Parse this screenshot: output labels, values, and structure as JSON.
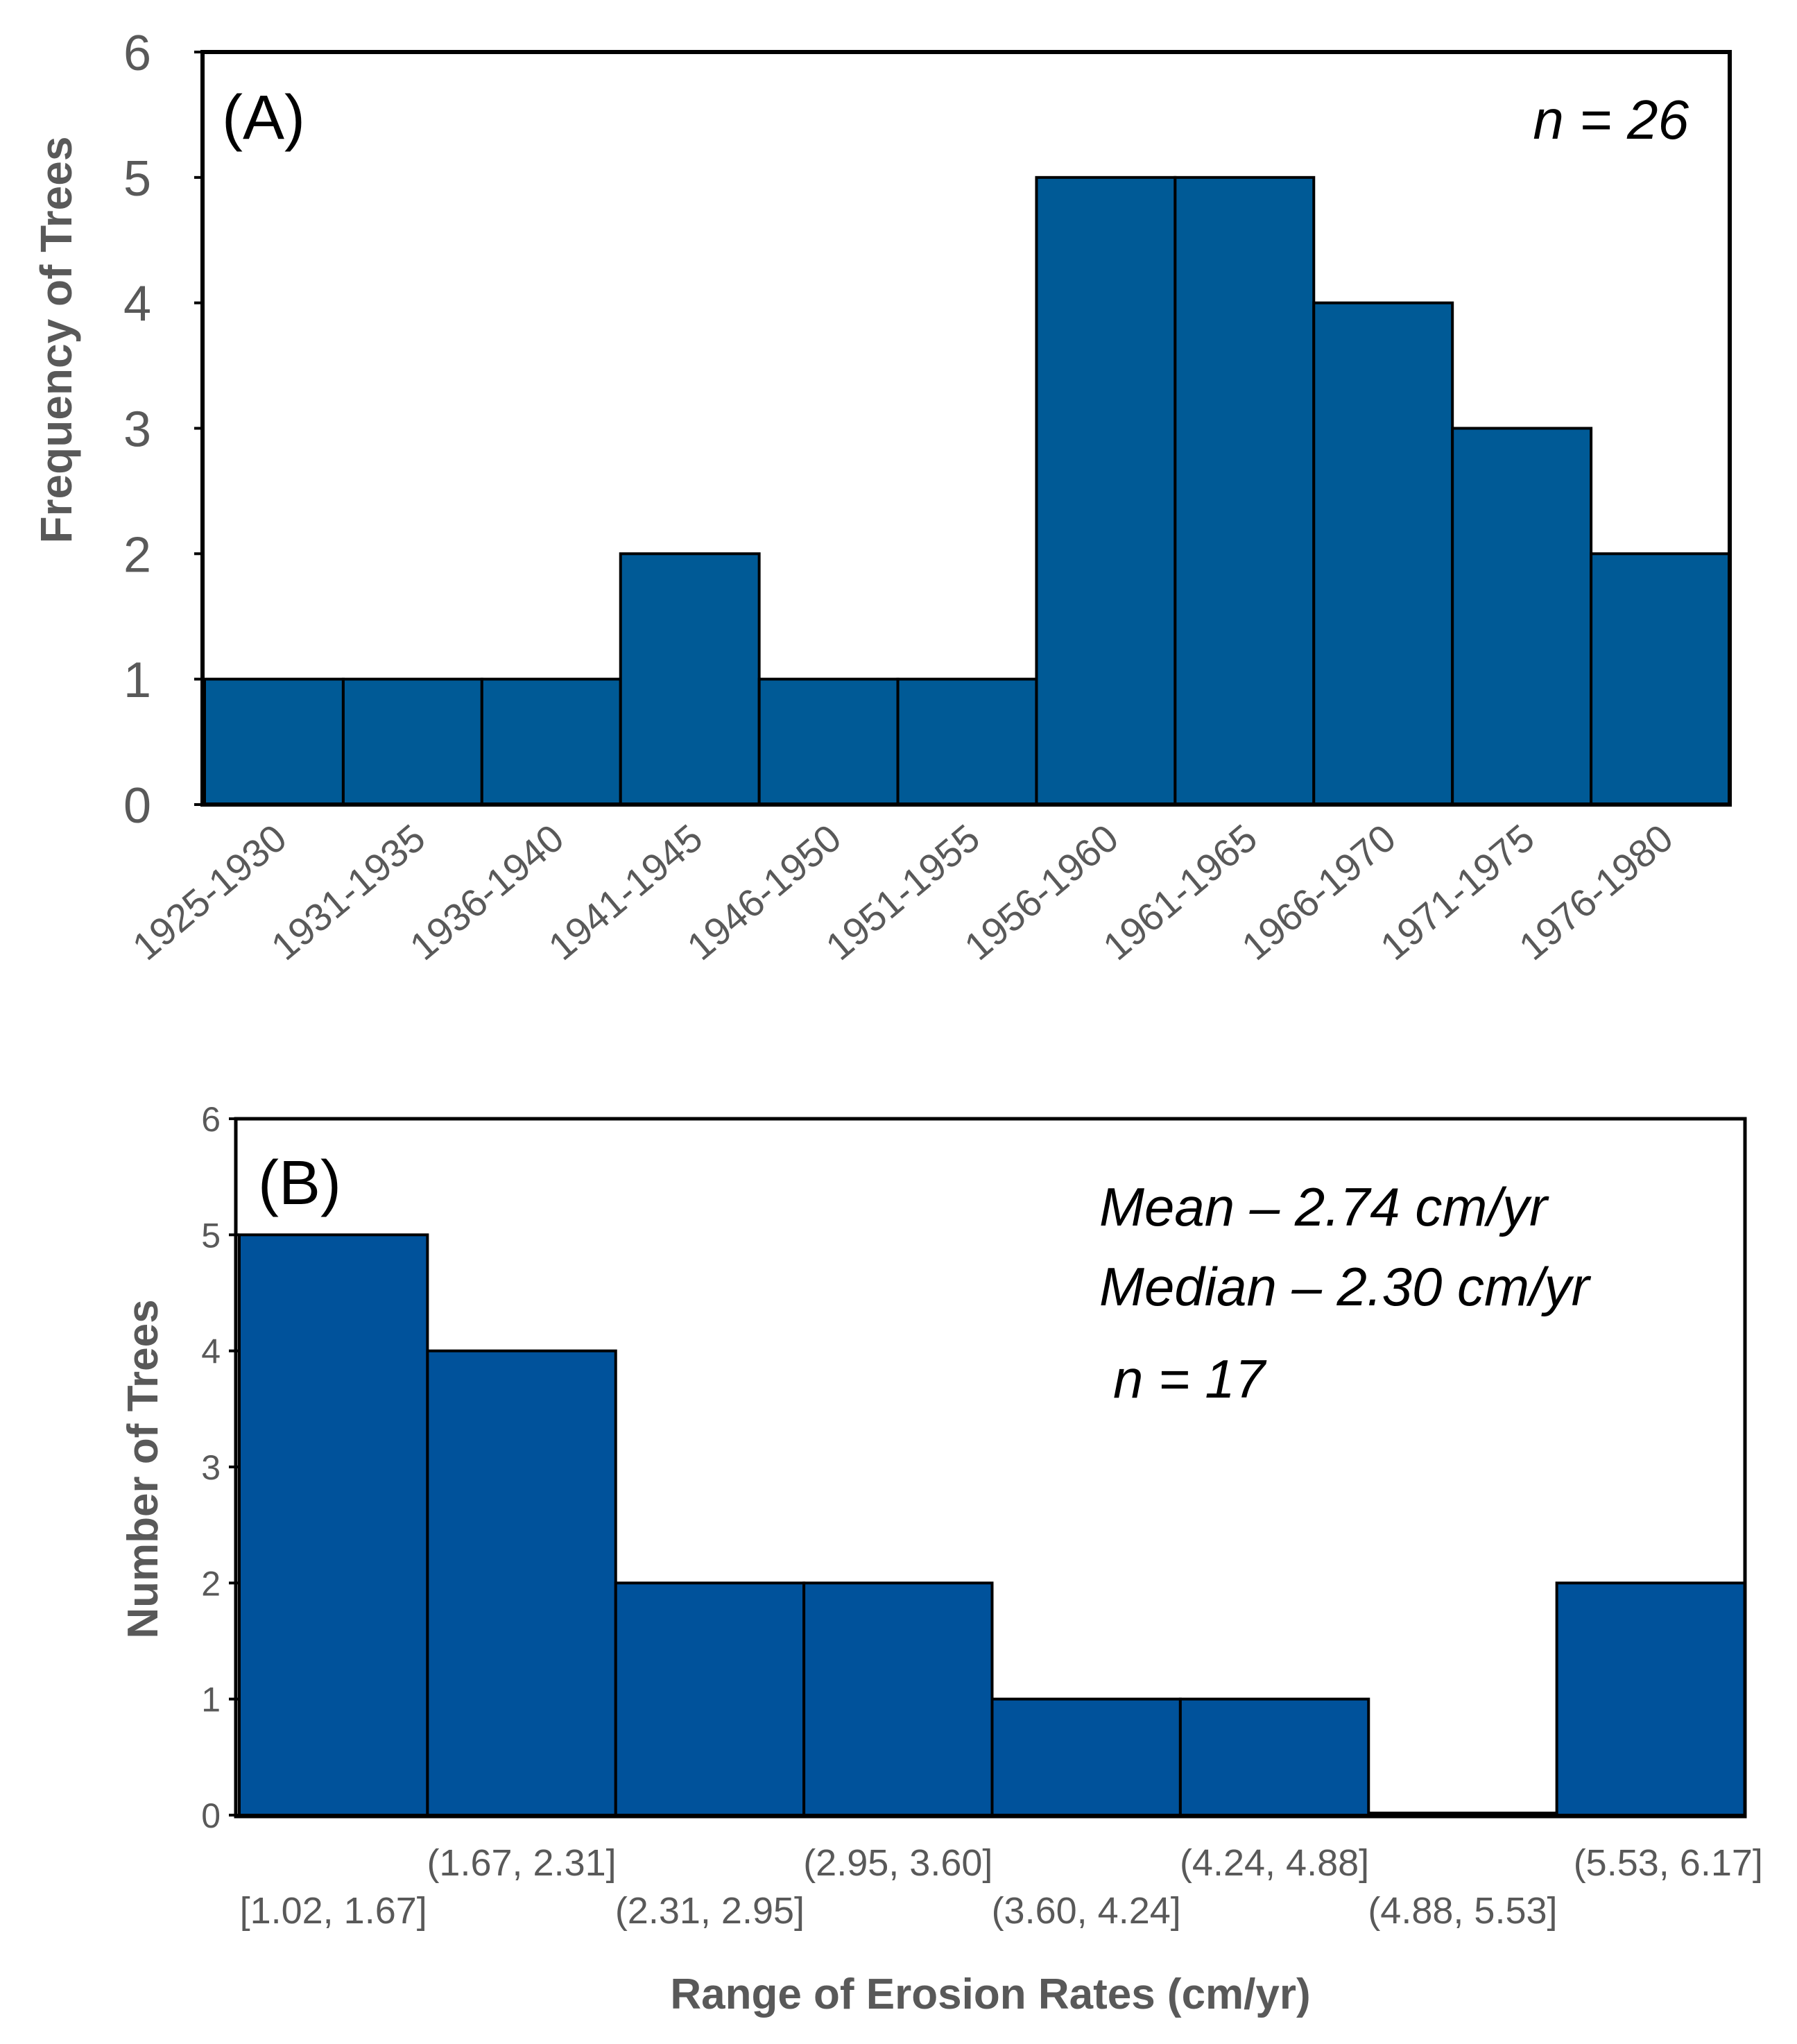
{
  "chart_data": [
    {
      "type": "bar",
      "panel": "(A)",
      "categories": [
        "1925-1930",
        "1931-1935",
        "1936-1940",
        "1941-1945",
        "1946-1950",
        "1951-1955",
        "1956-1960",
        "1961-1965",
        "1966-1970",
        "1971-1975",
        "1976-1980"
      ],
      "values": [
        1,
        1,
        1,
        2,
        1,
        1,
        5,
        5,
        4,
        3,
        2
      ],
      "ylabel": "Frequency of Trees",
      "xlabel": "",
      "ylim": [
        0,
        6
      ],
      "yticks": [
        "0",
        "1",
        "2",
        "3",
        "4",
        "5",
        "6"
      ],
      "annotations": [
        "n = 26"
      ],
      "bar_color": "#005a96",
      "grid": false
    },
    {
      "type": "bar",
      "panel": "(B)",
      "categories": [
        "[1.02, 1.67]",
        "(1.67, 2.31]",
        "(2.31, 2.95]",
        "(2.95, 3.60]",
        "(3.60, 4.24]",
        "(4.24, 4.88]",
        "(4.88, 5.53]",
        "(5.53, 6.17]"
      ],
      "values": [
        5,
        4,
        2,
        2,
        1,
        1,
        0,
        2
      ],
      "ylabel": "Number of Trees",
      "xlabel": "Range of Erosion Rates (cm/yr)",
      "ylim": [
        0,
        6
      ],
      "yticks": [
        "0",
        "1",
        "2",
        "3",
        "4",
        "5",
        "6"
      ],
      "annotations": [
        "Mean – 2.74 cm/yr",
        "Median – 2.30 cm/yr",
        "n = 17"
      ],
      "bar_color": "#00529b",
      "grid": false
    }
  ]
}
